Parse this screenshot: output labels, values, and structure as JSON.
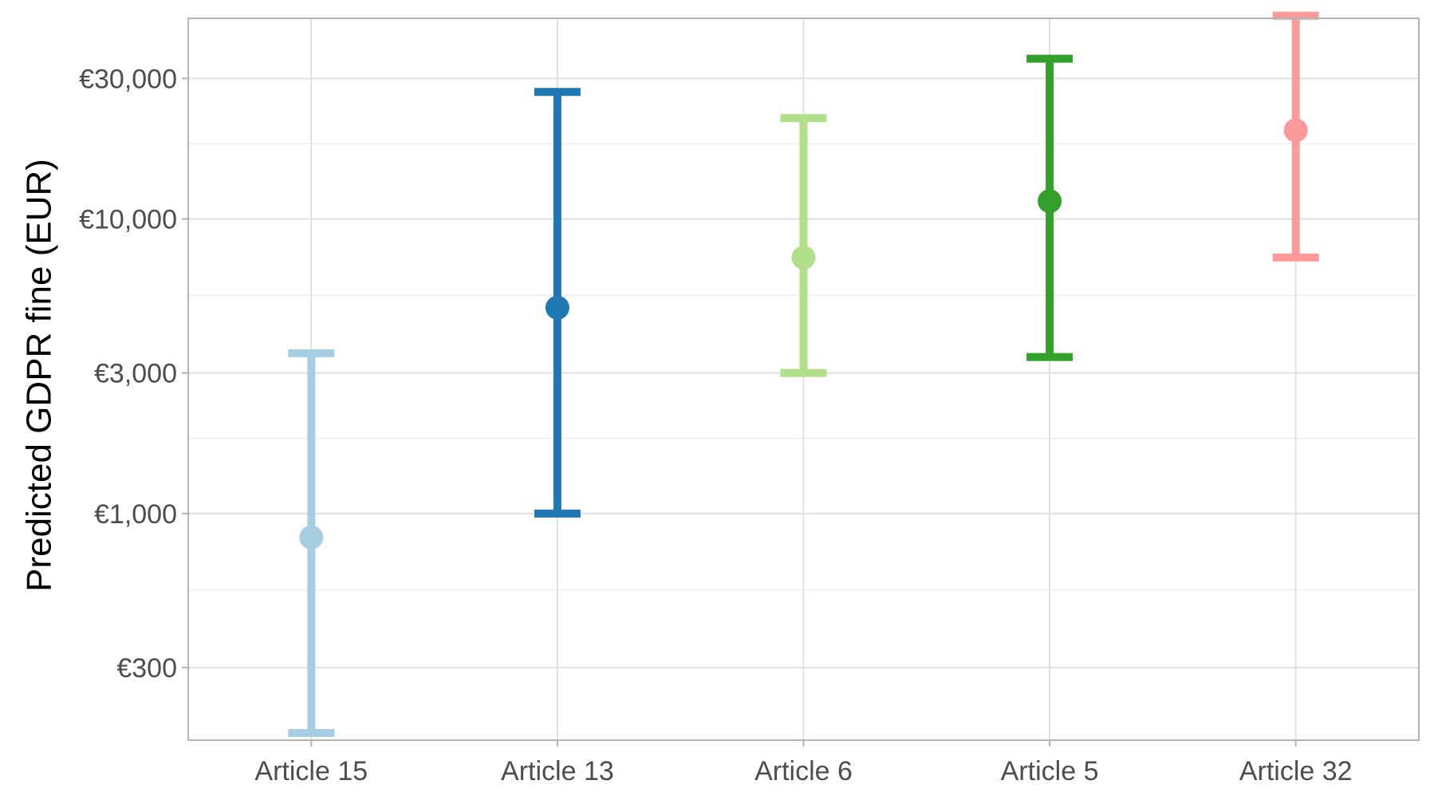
{
  "chart_data": {
    "type": "errorbar",
    "title": "",
    "xlabel": "",
    "ylabel": "Predicted GDPR fine (EUR)",
    "y_scale": "log",
    "ylim": [
      170,
      48000
    ],
    "y_ticks": [
      {
        "value": 300,
        "label": "€300"
      },
      {
        "value": 1000,
        "label": "€1,000"
      },
      {
        "value": 3000,
        "label": "€3,000"
      },
      {
        "value": 10000,
        "label": "€10,000"
      },
      {
        "value": 30000,
        "label": "€30,000"
      }
    ],
    "y_minor_grid": [
      550,
      1800,
      5500,
      18000
    ],
    "grid": true,
    "legend": "none",
    "categories": [
      "Article 15",
      "Article 13",
      "Article 6",
      "Article 5",
      "Article 32"
    ],
    "points": [
      {
        "category": "Article 15",
        "estimate": 830,
        "lower": 180,
        "upper": 3500,
        "color": "#a6cee3"
      },
      {
        "category": "Article 13",
        "estimate": 5000,
        "lower": 1000,
        "upper": 27000,
        "color": "#1f78b4"
      },
      {
        "category": "Article 6",
        "estimate": 7400,
        "lower": 3000,
        "upper": 22000,
        "color": "#b2df8a"
      },
      {
        "category": "Article 5",
        "estimate": 11500,
        "lower": 3400,
        "upper": 35000,
        "color": "#33a02c"
      },
      {
        "category": "Article 32",
        "estimate": 20000,
        "lower": 7400,
        "upper": 49000,
        "color": "#fb9a99"
      }
    ]
  }
}
